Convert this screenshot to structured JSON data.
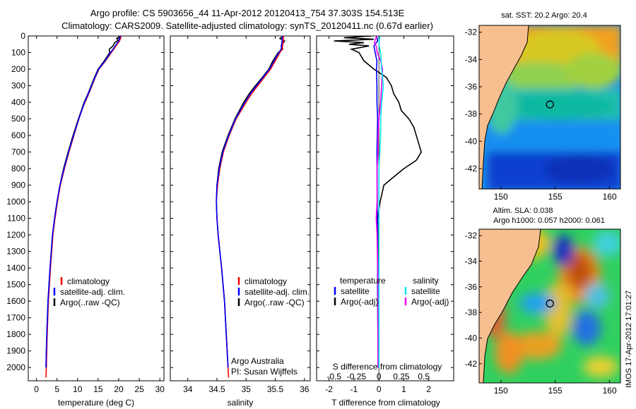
{
  "title": {
    "line1": "Argo profile: CS 5903656_44 11-Apr-2012 20120413_754 37.303S 154.513E",
    "line2": "Climatology: CARS2009. Satellite-adjusted climatology: synTS_20120411.nc (0.67d earlier)"
  },
  "colors": {
    "climatology": "#ff0000",
    "satellite": "#0000ff",
    "argo": "#000000",
    "salinity_satellite": "#00e5ee",
    "salinity_argo": "#ee00ee",
    "land": "#f7bf8f"
  },
  "chart_data": [
    {
      "type": "line",
      "panel": "temperature",
      "xlabel": "temperature (deg C)",
      "ylabel": "depth",
      "xlim": [
        -2,
        31
      ],
      "ylim": [
        2080,
        0
      ],
      "xticks": [
        0,
        5,
        10,
        15,
        20,
        25,
        30
      ],
      "yticks": [
        0,
        100,
        200,
        300,
        400,
        500,
        600,
        700,
        800,
        900,
        1000,
        1100,
        1200,
        1300,
        1400,
        1500,
        1600,
        1700,
        1800,
        1900,
        2000
      ],
      "legend": [
        "climatology",
        "satellite-adj. clim.",
        "Argo(..raw -QC)"
      ],
      "series": [
        {
          "name": "climatology",
          "color": "red",
          "depth": [
            0,
            10,
            30,
            50,
            80,
            100,
            150,
            200,
            250,
            300,
            350,
            400,
            450,
            500,
            600,
            700,
            800,
            900,
            1000,
            1100,
            1200,
            1400,
            1600,
            1800,
            2000,
            2060
          ],
          "values": [
            20.6,
            20.5,
            20.2,
            19.6,
            18.8,
            18.2,
            16.8,
            15.2,
            14.3,
            13.5,
            12.7,
            11.8,
            11.0,
            10.3,
            9.1,
            7.9,
            6.8,
            5.8,
            5.1,
            4.5,
            4.0,
            3.4,
            2.9,
            2.6,
            2.4,
            2.3
          ]
        },
        {
          "name": "satellite-adj. clim.",
          "color": "blue",
          "depth": [
            0,
            10,
            30,
            50,
            80,
            100,
            150,
            200,
            250,
            300,
            350,
            400,
            450,
            500,
            600,
            700,
            800,
            900,
            1000,
            1100,
            1200,
            1400,
            1600,
            1800,
            2000
          ],
          "values": [
            20.4,
            20.3,
            20.0,
            19.4,
            18.6,
            18.0,
            16.7,
            15.1,
            14.2,
            13.4,
            12.6,
            11.7,
            11.0,
            10.3,
            9.0,
            7.8,
            6.7,
            5.7,
            5.0,
            4.4,
            3.9,
            3.3,
            2.8,
            2.5,
            2.3
          ]
        },
        {
          "name": "Argo(..raw -QC)",
          "color": "black",
          "depth": [
            5,
            15,
            25,
            40,
            60,
            80,
            100,
            150,
            200,
            250,
            300,
            350,
            400,
            450,
            500,
            600,
            700,
            800,
            900,
            1000,
            1100,
            1200,
            1400,
            1600,
            1800,
            2000
          ],
          "values": [
            20.2,
            19.5,
            19.9,
            19.0,
            18.6,
            17.7,
            17.8,
            16.5,
            15.0,
            14.1,
            13.3,
            12.5,
            11.6,
            10.9,
            10.2,
            8.9,
            7.7,
            6.6,
            5.7,
            5.0,
            4.4,
            3.9,
            3.3,
            2.8,
            2.5,
            2.3
          ]
        }
      ]
    },
    {
      "type": "line",
      "panel": "salinity",
      "xlabel": "salinity",
      "xlim": [
        33.7,
        36.1
      ],
      "ylim": [
        2080,
        0
      ],
      "xticks": [
        34,
        34.5,
        35,
        35.5,
        36
      ],
      "legend": [
        "climatology",
        "satellite-adj. clim.",
        "Argo(..raw -QC)"
      ],
      "series": [
        {
          "name": "climatology",
          "color": "red",
          "depth": [
            0,
            20,
            50,
            80,
            100,
            150,
            200,
            250,
            300,
            350,
            400,
            500,
            600,
            700,
            800,
            900,
            1000,
            1100,
            1200,
            1300,
            1400,
            1600,
            1800,
            2000,
            2060
          ],
          "values": [
            35.64,
            35.64,
            35.63,
            35.62,
            35.58,
            35.5,
            35.42,
            35.31,
            35.2,
            35.09,
            35.0,
            34.83,
            34.71,
            34.61,
            34.55,
            34.51,
            34.49,
            34.5,
            34.52,
            34.55,
            34.58,
            34.63,
            34.66,
            34.69,
            34.7
          ]
        },
        {
          "name": "satellite-adj. clim.",
          "color": "blue",
          "depth": [
            0,
            20,
            50,
            80,
            100,
            150,
            200,
            250,
            300,
            350,
            400,
            500,
            600,
            700,
            800,
            900,
            1000,
            1100,
            1200,
            1300,
            1400,
            1600,
            1800,
            2000
          ],
          "values": [
            35.62,
            35.62,
            35.61,
            35.6,
            35.56,
            35.48,
            35.4,
            35.29,
            35.18,
            35.07,
            34.98,
            34.82,
            34.7,
            34.6,
            34.54,
            34.5,
            34.49,
            34.5,
            34.52,
            34.55,
            34.58,
            34.63,
            34.66,
            34.69
          ]
        },
        {
          "name": "Argo(..raw -QC)",
          "color": "black",
          "depth": [
            5,
            15,
            30,
            60,
            80,
            100,
            150,
            200,
            250,
            300,
            350,
            400,
            500,
            600,
            700,
            800,
            900,
            1000,
            1100,
            1200,
            1400,
            1600,
            1800,
            2000
          ],
          "values": [
            35.62,
            35.58,
            35.66,
            35.6,
            35.63,
            35.55,
            35.46,
            35.39,
            35.28,
            35.16,
            35.05,
            34.96,
            34.81,
            34.69,
            34.59,
            34.53,
            34.5,
            34.49,
            34.5,
            34.52,
            34.58,
            34.63,
            34.66,
            34.69
          ]
        }
      ]
    },
    {
      "type": "line",
      "panel": "difference",
      "xlabel": "T difference from climatology",
      "xlabel2": "S difference from climatology",
      "xlim": [
        -2.5,
        3.0
      ],
      "ylim": [
        2080,
        0
      ],
      "xticks": [
        -2,
        -1,
        0,
        1,
        2
      ],
      "xticks_top": [
        -0.5,
        -0.25,
        0,
        0.25,
        0.5
      ],
      "legend_titles": [
        "temperature",
        "salinity"
      ],
      "legend": [
        "satellite",
        "Argo(-adj)",
        "satellite",
        "Argo(-adj)"
      ],
      "series": [
        {
          "name": "temperature satellite",
          "color": "blue",
          "depth": [
            0,
            30,
            60,
            100,
            150,
            200,
            300,
            400,
            500,
            700,
            900,
            1200,
            1500,
            1800,
            2000
          ],
          "values": [
            -0.1,
            -0.05,
            -0.2,
            -0.15,
            -0.08,
            -0.1,
            -0.08,
            -0.08,
            -0.05,
            -0.08,
            -0.07,
            -0.06,
            -0.05,
            -0.04,
            -0.03
          ]
        },
        {
          "name": "temperature Argo(-adj)",
          "color": "black",
          "depth": [
            0,
            10,
            20,
            30,
            40,
            50,
            60,
            80,
            100,
            150,
            200,
            250,
            300,
            350,
            400,
            450,
            500,
            550,
            600,
            650,
            700,
            750,
            800,
            850,
            900,
            1000,
            1100,
            1200,
            1500,
            1800,
            2000
          ],
          "values": [
            -0.3,
            -1.4,
            -0.2,
            -1.8,
            -0.6,
            -1.2,
            -0.4,
            -1.1,
            -0.8,
            -0.6,
            -0.2,
            0.3,
            0.5,
            0.6,
            0.8,
            0.9,
            1.2,
            1.4,
            1.5,
            1.6,
            1.7,
            1.5,
            1.0,
            0.6,
            0.2,
            0.05,
            -0.05,
            -0.04,
            -0.05,
            -0.04,
            -0.03
          ]
        },
        {
          "name": "salinity satellite",
          "color": "cyan",
          "depth": [
            0,
            50,
            100,
            200,
            300,
            400,
            500,
            600,
            700,
            800,
            900,
            1000,
            1500,
            2000
          ],
          "values": [
            0.01,
            0.0,
            0.02,
            0.03,
            0.05,
            0.03,
            0.02,
            0.02,
            0.01,
            0.0,
            0.0,
            0.0,
            0.0,
            0.0
          ]
        },
        {
          "name": "salinity Argo(-adj)",
          "color": "magenta",
          "depth": [
            0,
            20,
            40,
            60,
            100,
            150,
            200,
            300,
            400,
            500,
            600,
            700,
            800,
            900,
            1000,
            1100,
            1200,
            1500,
            2000
          ],
          "values": [
            -0.02,
            -0.04,
            -0.05,
            -0.03,
            -0.02,
            0.02,
            0.04,
            0.03,
            0.02,
            0.0,
            -0.01,
            -0.01,
            -0.02,
            -0.02,
            -0.02,
            -0.03,
            -0.02,
            -0.01,
            -0.01
          ]
        }
      ]
    },
    {
      "type": "heatmap",
      "panel": "SST map",
      "title": "sat. SST: 20.2 Argo: 20.4",
      "xticks": [
        150,
        155,
        160
      ],
      "yticks": [
        -32,
        -34,
        -36,
        -38,
        -40,
        -42
      ],
      "xlim": [
        148,
        161
      ],
      "ylim": [
        -43.5,
        -31.5
      ],
      "marker": {
        "lon": 154.513,
        "lat": -37.303
      }
    },
    {
      "type": "heatmap",
      "panel": "SLA map",
      "title": "Altim. SLA: 0.038",
      "title2": "Argo h1000: 0.057 h2000: 0.061",
      "xticks": [
        150,
        155,
        160
      ],
      "yticks": [
        -32,
        -34,
        -36,
        -38,
        -40,
        -42
      ],
      "xlim": [
        148,
        161
      ],
      "ylim": [
        -43.5,
        -31.5
      ],
      "marker": {
        "lon": 154.513,
        "lat": -37.303
      }
    }
  ],
  "annotations": {
    "argo_center": "Argo Australia",
    "pi": "PI: Susan Wijffels",
    "imos": "IMOS 17-Apr-2012 17:01:27"
  }
}
